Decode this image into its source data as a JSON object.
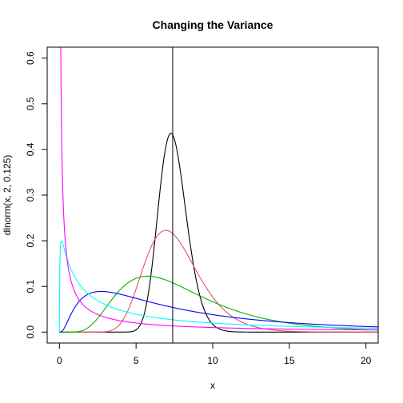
{
  "chart_data": {
    "type": "line",
    "title": "Changing the Variance",
    "xlabel": "x",
    "ylabel": "dlnorm(x, 2, 0.125)",
    "xlim": [
      -0.8,
      20.8
    ],
    "ylim": [
      -0.024,
      0.624
    ],
    "xticks": [
      0,
      5,
      10,
      15,
      20
    ],
    "yticks": [
      0.0,
      0.1,
      0.2,
      0.3,
      0.4,
      0.5,
      0.6
    ],
    "ytick_labels": [
      "0.0",
      "0.1",
      "0.2",
      "0.3",
      "0.4",
      "0.5",
      "0.6"
    ],
    "vline_x": 7.389,
    "x_range": [
      0,
      21
    ],
    "series": [
      {
        "meanlog": 2,
        "sdlog": 0.125,
        "color": "#000000"
      },
      {
        "meanlog": 2,
        "sdlog": 0.25,
        "color": "#DF536B"
      },
      {
        "meanlog": 2,
        "sdlog": 0.5,
        "color": "#00B000"
      },
      {
        "meanlog": 2,
        "sdlog": 1,
        "color": "#0000FF"
      },
      {
        "meanlog": 2,
        "sdlog": 2,
        "color": "#00FFFF"
      },
      {
        "meanlog": 2,
        "sdlog": 4,
        "color": "#FF00FF"
      }
    ]
  }
}
